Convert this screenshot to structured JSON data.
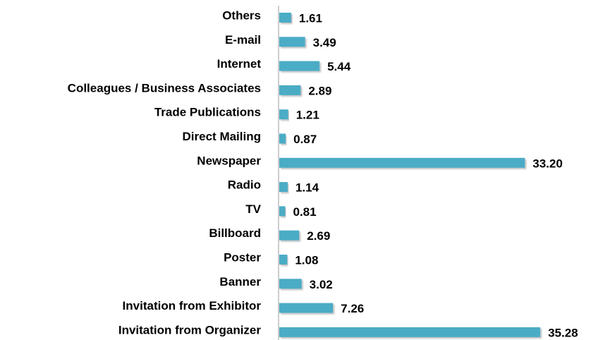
{
  "chart_data": {
    "type": "bar",
    "orientation": "horizontal",
    "categories": [
      "Others",
      "E-mail",
      "Internet",
      "Colleagues / Business Associates",
      "Trade Publications",
      "Direct Mailing",
      "Newspaper",
      "Radio",
      "TV",
      "Billboard",
      "Poster",
      "Banner",
      "Invitation from Exhibitor",
      "Invitation from Organizer"
    ],
    "values": [
      1.61,
      3.49,
      5.44,
      2.89,
      1.21,
      0.87,
      33.2,
      1.14,
      0.81,
      2.69,
      1.08,
      3.02,
      7.26,
      35.28
    ],
    "value_labels": [
      "1.61",
      "3.49",
      "5.44",
      "2.89",
      "1.21",
      "0.87",
      "33.20",
      "1.14",
      "0.81",
      "2.69",
      "1.08",
      "3.02",
      "7.26",
      "35.28"
    ],
    "color": "#4bacc6"
  }
}
